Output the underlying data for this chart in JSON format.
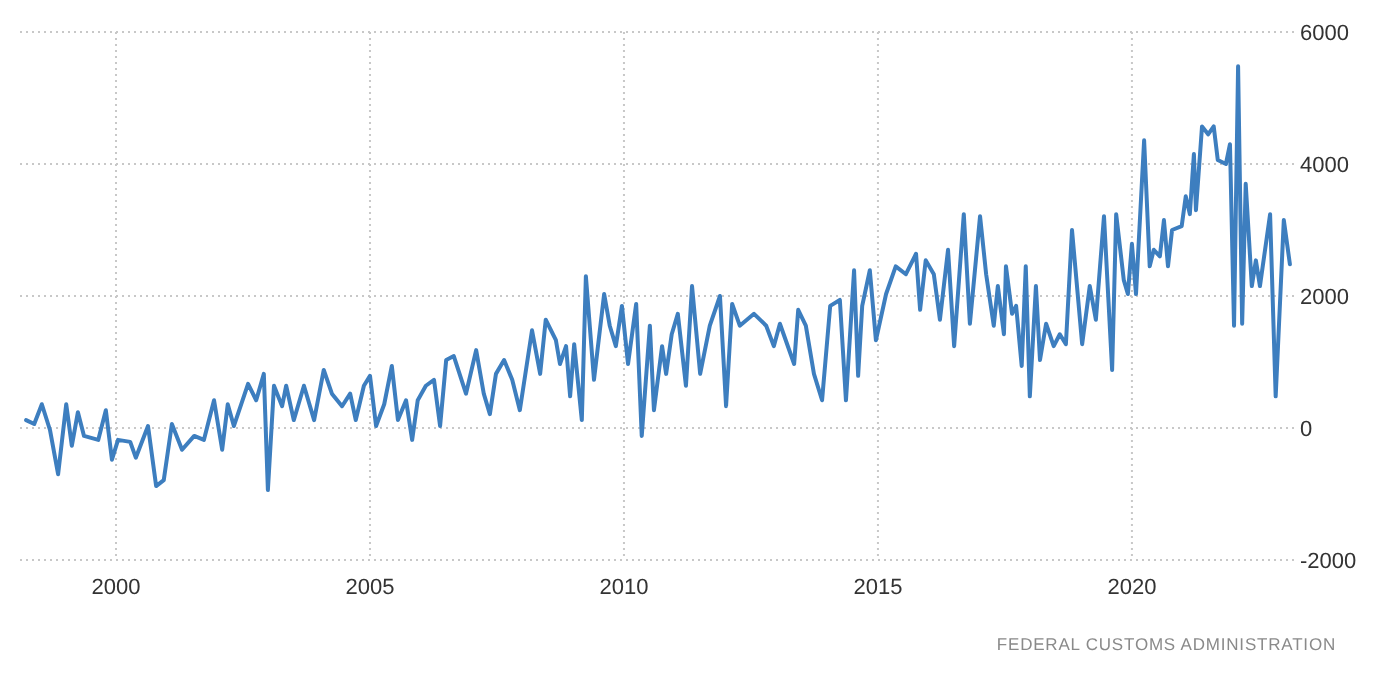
{
  "chart_data": {
    "type": "line",
    "x": [
      1998.23,
      1998.39,
      1998.54,
      1998.7,
      1998.86,
      1999.02,
      1999.13,
      1999.25,
      1999.37,
      1999.65,
      1999.8,
      1999.92,
      2000.04,
      2000.28,
      2000.39,
      2000.63,
      2000.79,
      2000.94,
      2001.1,
      2001.3,
      2001.54,
      2001.73,
      2001.93,
      2002.09,
      2002.2,
      2002.32,
      2002.6,
      2002.76,
      2002.91,
      2002.99,
      2003.11,
      2003.27,
      2003.35,
      2003.5,
      2003.7,
      2003.9,
      2004.09,
      2004.25,
      2004.45,
      2004.61,
      2004.72,
      2004.88,
      2005.0,
      2005.12,
      2005.28,
      2005.43,
      2005.55,
      2005.71,
      2005.83,
      2005.94,
      2006.1,
      2006.26,
      2006.38,
      2006.5,
      2006.65,
      2006.89,
      2007.09,
      2007.24,
      2007.36,
      2007.48,
      2007.64,
      2007.8,
      2007.95,
      2008.19,
      2008.35,
      2008.46,
      2008.66,
      2008.74,
      2008.86,
      2008.94,
      2009.02,
      2009.17,
      2009.25,
      2009.41,
      2009.61,
      2009.72,
      2009.84,
      2009.96,
      2010.08,
      2010.24,
      2010.35,
      2010.51,
      2010.59,
      2010.75,
      2010.83,
      2010.94,
      2011.06,
      2011.22,
      2011.34,
      2011.5,
      2011.69,
      2011.89,
      2012.01,
      2012.13,
      2012.28,
      2012.56,
      2012.8,
      2012.95,
      2013.07,
      2013.35,
      2013.43,
      2013.58,
      2013.74,
      2013.9,
      2014.06,
      2014.25,
      2014.37,
      2014.53,
      2014.61,
      2014.69,
      2014.84,
      2014.96,
      2015.16,
      2015.35,
      2015.55,
      2015.75,
      2015.83,
      2015.94,
      2016.1,
      2016.22,
      2016.38,
      2016.5,
      2016.69,
      2016.81,
      2017.01,
      2017.13,
      2017.28,
      2017.36,
      2017.48,
      2017.52,
      2017.64,
      2017.72,
      2017.83,
      2017.91,
      2017.99,
      2018.11,
      2018.19,
      2018.31,
      2018.46,
      2018.58,
      2018.7,
      2018.82,
      2019.02,
      2019.17,
      2019.29,
      2019.45,
      2019.61,
      2019.69,
      2019.84,
      2019.92,
      2020.0,
      2020.08,
      2020.24,
      2020.35,
      2020.43,
      2020.55,
      2020.63,
      2020.71,
      2020.79,
      2020.98,
      2021.06,
      2021.14,
      2021.22,
      2021.26,
      2021.38,
      2021.5,
      2021.61,
      2021.69,
      2021.85,
      2021.93,
      2022.01,
      2022.09,
      2022.17,
      2022.24,
      2022.36,
      2022.44,
      2022.52,
      2022.72,
      2022.83,
      2022.99,
      2023.11
    ],
    "values": [
      120,
      60,
      360,
      -30,
      -700,
      360,
      -270,
      240,
      -120,
      -180,
      270,
      -480,
      -180,
      -210,
      -450,
      30,
      -880,
      -790,
      60,
      -330,
      -120,
      -180,
      420,
      -330,
      360,
      30,
      670,
      420,
      820,
      -940,
      640,
      330,
      640,
      120,
      640,
      120,
      880,
      520,
      330,
      520,
      120,
      640,
      790,
      30,
      360,
      940,
      120,
      420,
      -180,
      420,
      640,
      730,
      30,
      1030,
      1090,
      520,
      1180,
      520,
      210,
      820,
      1030,
      730,
      270,
      1480,
      820,
      1640,
      1330,
      970,
      1240,
      480,
      1270,
      120,
      2300,
      730,
      2030,
      1550,
      1240,
      1850,
      970,
      1880,
      -120,
      1550,
      270,
      1240,
      820,
      1420,
      1730,
      640,
      2150,
      820,
      1550,
      2000,
      330,
      1880,
      1550,
      1730,
      1550,
      1240,
      1580,
      970,
      1790,
      1550,
      820,
      420,
      1850,
      1940,
      420,
      2390,
      790,
      1850,
      2390,
      1330,
      2030,
      2450,
      2330,
      2640,
      1790,
      2540,
      2330,
      1640,
      2700,
      1240,
      3240,
      1580,
      3210,
      2330,
      1550,
      2150,
      1420,
      2450,
      1730,
      1850,
      940,
      2450,
      480,
      2150,
      1030,
      1580,
      1240,
      1420,
      1270,
      3000,
      1270,
      2150,
      1640,
      3210,
      880,
      3240,
      2240,
      2030,
      2790,
      2030,
      4360,
      2450,
      2700,
      2600,
      3150,
      2450,
      3000,
      3060,
      3510,
      3240,
      4150,
      3300,
      4570,
      4450,
      4570,
      4060,
      4000,
      4300,
      1550,
      5480,
      1580,
      3700,
      2150,
      2540,
      2150,
      3240,
      480,
      3150,
      2480
    ],
    "color": "#3d7ebf",
    "xlim": [
      1998.11,
      2023.23
    ],
    "xticks": [
      2000,
      2005,
      2010,
      2015,
      2020
    ],
    "ylim": [
      -2000,
      6000
    ],
    "yticks": [
      -2000,
      0,
      2000,
      4000,
      6000
    ],
    "grid": true,
    "annotations": [
      "FEDERAL CUSTOMS ADMINISTRATION"
    ]
  }
}
